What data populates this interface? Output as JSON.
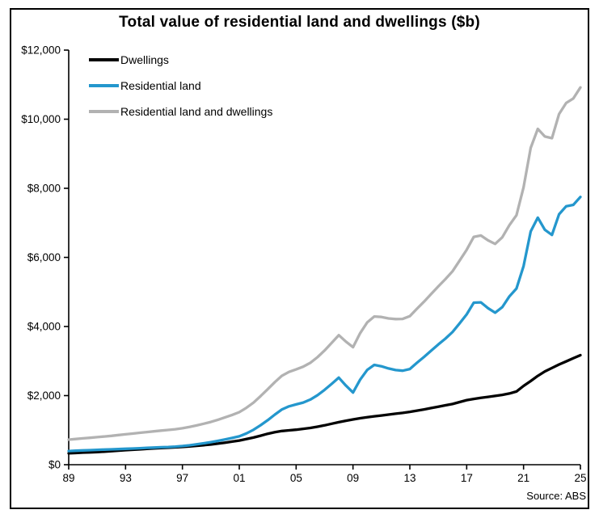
{
  "title": "Total value of residential land and dwellings ($b)",
  "source_note": "Source: ABS",
  "colors": {
    "dwellings": "#000000",
    "residential_land": "#2497cd",
    "residential_land_and_dwellings": "#b2b2b2",
    "axis": "#000000",
    "background": "#ffffff",
    "border": "#000000"
  },
  "legend": [
    {
      "label": "Dwellings",
      "color": "#000000"
    },
    {
      "label": "Residential land",
      "color": "#2497cd"
    },
    {
      "label": "Residential land and dwellings",
      "color": "#b2b2b2"
    }
  ],
  "chart_data": {
    "type": "line",
    "title": "Total value of residential land and dwellings ($b)",
    "xlabel": "",
    "ylabel": "",
    "xlim": [
      1989,
      2025
    ],
    "ylim": [
      0,
      12000
    ],
    "grid": false,
    "legend_position": "top-left",
    "source": "Source: ABS",
    "x_ticks": [
      1989,
      1993,
      1997,
      2001,
      2005,
      2009,
      2013,
      2017,
      2021,
      2025
    ],
    "x_tick_labels": [
      "89",
      "93",
      "97",
      "01",
      "05",
      "09",
      "13",
      "17",
      "21",
      "25"
    ],
    "y_ticks": [
      0,
      2000,
      4000,
      6000,
      8000,
      10000,
      12000
    ],
    "y_tick_labels": [
      "$0",
      "$2,000",
      "$4,000",
      "$6,000",
      "$8,000",
      "$10,000",
      "$12,000"
    ],
    "x": [
      1989.0,
      1989.5,
      1990.0,
      1990.5,
      1991.0,
      1991.5,
      1992.0,
      1992.5,
      1993.0,
      1993.5,
      1994.0,
      1994.5,
      1995.0,
      1995.5,
      1996.0,
      1996.5,
      1997.0,
      1997.5,
      1998.0,
      1998.5,
      1999.0,
      1999.5,
      2000.0,
      2000.5,
      2001.0,
      2001.5,
      2002.0,
      2002.5,
      2003.0,
      2003.5,
      2004.0,
      2004.5,
      2005.0,
      2005.5,
      2006.0,
      2006.5,
      2007.0,
      2007.5,
      2008.0,
      2008.5,
      2009.0,
      2009.5,
      2010.0,
      2010.5,
      2011.0,
      2011.5,
      2012.0,
      2012.5,
      2013.0,
      2013.5,
      2014.0,
      2014.5,
      2015.0,
      2015.5,
      2016.0,
      2016.5,
      2017.0,
      2017.5,
      2018.0,
      2018.5,
      2019.0,
      2019.5,
      2020.0,
      2020.5,
      2021.0,
      2021.5,
      2022.0,
      2022.5,
      2023.0,
      2023.5,
      2024.0,
      2024.5,
      2025.0
    ],
    "series": [
      {
        "name": "Residential land and dwellings",
        "color": "#b2b2b2",
        "values": [
          725,
          745,
          763,
          780,
          798,
          816,
          836,
          858,
          880,
          900,
          923,
          946,
          967,
          986,
          1005,
          1028,
          1055,
          1092,
          1138,
          1186,
          1237,
          1301,
          1370,
          1442,
          1520,
          1646,
          1796,
          1985,
          2185,
          2390,
          2575,
          2685,
          2757,
          2838,
          2950,
          3110,
          3305,
          3525,
          3750,
          3562,
          3400,
          3805,
          4120,
          4290,
          4275,
          4235,
          4215,
          4220,
          4300,
          4515,
          4720,
          4940,
          5160,
          5370,
          5597,
          5903,
          6220,
          6595,
          6635,
          6493,
          6390,
          6580,
          6930,
          7220,
          8030,
          9170,
          9720,
          9500,
          9450,
          10150,
          10470,
          10600,
          10920
        ]
      },
      {
        "name": "Dwellings",
        "color": "#000000",
        "values": [
          330,
          340,
          350,
          359,
          368,
          379,
          392,
          406,
          420,
          432,
          445,
          458,
          470,
          481,
          492,
          503,
          515,
          530,
          548,
          566,
          585,
          611,
          638,
          668,
          700,
          741,
          786,
          840,
          895,
          940,
          975,
          995,
          1012,
          1038,
          1065,
          1100,
          1140,
          1185,
          1230,
          1272,
          1310,
          1345,
          1375,
          1400,
          1425,
          1450,
          1475,
          1500,
          1530,
          1565,
          1600,
          1640,
          1680,
          1720,
          1757,
          1813,
          1870,
          1905,
          1935,
          1963,
          1990,
          2020,
          2060,
          2120,
          2280,
          2420,
          2570,
          2700,
          2800,
          2900,
          2990,
          3080,
          3170
        ]
      },
      {
        "name": "Residential land",
        "color": "#2497cd",
        "values": [
          395,
          405,
          413,
          421,
          430,
          437,
          444,
          452,
          460,
          468,
          478,
          488,
          497,
          505,
          513,
          525,
          540,
          562,
          590,
          620,
          652,
          690,
          732,
          774,
          820,
          905,
          1010,
          1145,
          1290,
          1450,
          1600,
          1690,
          1745,
          1800,
          1885,
          2010,
          2165,
          2340,
          2520,
          2290,
          2090,
          2460,
          2745,
          2890,
          2850,
          2785,
          2740,
          2720,
          2770,
          2950,
          3120,
          3300,
          3480,
          3650,
          3840,
          4090,
          4350,
          4690,
          4700,
          4530,
          4400,
          4560,
          4870,
          5100,
          5750,
          6750,
          7150,
          6800,
          6650,
          7250,
          7480,
          7520,
          7750
        ]
      }
    ]
  }
}
